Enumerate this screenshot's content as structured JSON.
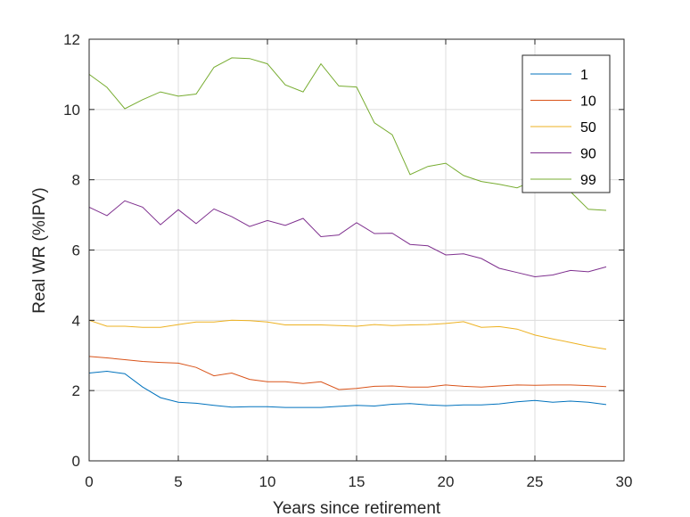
{
  "chart_data": {
    "type": "line",
    "title": "",
    "xlabel": "Years since retirement",
    "ylabel": "Real WR (%IPV)",
    "xlim": [
      0,
      30
    ],
    "ylim": [
      0,
      12
    ],
    "xticks": [
      0,
      5,
      10,
      15,
      20,
      25,
      30
    ],
    "yticks": [
      0,
      2,
      4,
      6,
      8,
      10,
      12
    ],
    "grid": true,
    "legend_position": "top-right",
    "x": [
      0,
      1,
      2,
      3,
      4,
      5,
      6,
      7,
      8,
      9,
      10,
      11,
      12,
      13,
      14,
      15,
      16,
      17,
      18,
      19,
      20,
      21,
      22,
      23,
      24,
      25,
      26,
      27,
      28,
      29
    ],
    "series": [
      {
        "name": "1",
        "color": "#0072bd",
        "values": [
          2.5,
          2.55,
          2.48,
          2.1,
          1.8,
          1.67,
          1.64,
          1.58,
          1.53,
          1.54,
          1.54,
          1.52,
          1.52,
          1.52,
          1.55,
          1.58,
          1.56,
          1.61,
          1.63,
          1.59,
          1.57,
          1.59,
          1.59,
          1.62,
          1.68,
          1.72,
          1.67,
          1.7,
          1.67,
          1.6
        ]
      },
      {
        "name": "10",
        "color": "#d95319",
        "values": [
          2.97,
          2.93,
          2.88,
          2.83,
          2.8,
          2.78,
          2.66,
          2.42,
          2.5,
          2.32,
          2.25,
          2.25,
          2.2,
          2.25,
          2.03,
          2.06,
          2.12,
          2.13,
          2.1,
          2.1,
          2.16,
          2.12,
          2.1,
          2.13,
          2.16,
          2.15,
          2.16,
          2.16,
          2.14,
          2.11
        ]
      },
      {
        "name": "50",
        "color": "#edb120",
        "values": [
          4.0,
          3.83,
          3.83,
          3.8,
          3.8,
          3.88,
          3.95,
          3.95,
          4.0,
          3.99,
          3.95,
          3.87,
          3.87,
          3.87,
          3.85,
          3.83,
          3.88,
          3.85,
          3.87,
          3.88,
          3.91,
          3.96,
          3.8,
          3.82,
          3.75,
          3.58,
          3.47,
          3.37,
          3.26,
          3.18
        ]
      },
      {
        "name": "90",
        "color": "#7e2f8e",
        "values": [
          7.22,
          6.98,
          7.4,
          7.22,
          6.72,
          7.15,
          6.75,
          7.17,
          6.95,
          6.67,
          6.84,
          6.7,
          6.9,
          6.38,
          6.43,
          6.78,
          6.47,
          6.48,
          6.16,
          6.12,
          5.86,
          5.89,
          5.76,
          5.48,
          5.36,
          5.24,
          5.29,
          5.42,
          5.38,
          5.52
        ]
      },
      {
        "name": "99",
        "color": "#77ac30",
        "values": [
          11.0,
          10.63,
          10.02,
          10.28,
          10.5,
          10.38,
          10.44,
          11.2,
          11.47,
          11.45,
          11.3,
          10.7,
          10.5,
          11.3,
          10.67,
          10.64,
          9.62,
          9.28,
          8.15,
          8.38,
          8.47,
          8.12,
          7.95,
          7.87,
          7.77,
          7.99,
          7.88,
          7.66,
          7.16,
          7.13
        ]
      }
    ]
  }
}
